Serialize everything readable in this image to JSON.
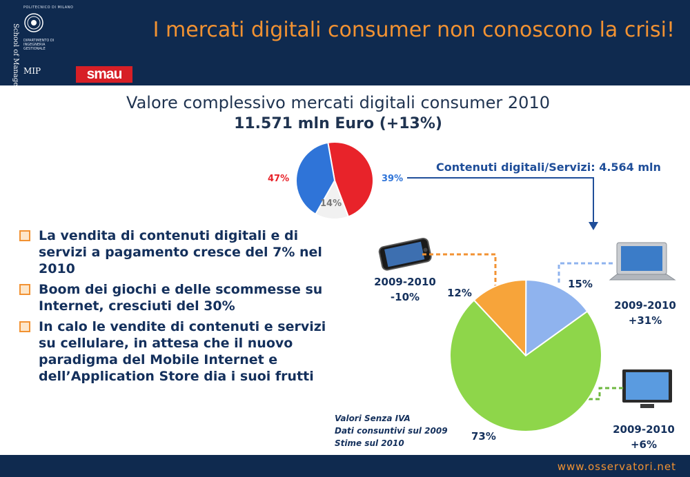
{
  "header": {
    "university": "POLITECNICO DI MILANO",
    "school": "School of Management",
    "department": "DIPARTIMENTO DI INGEGNERIA GESTIONALE",
    "mip_logo": "MIP",
    "smau_logo": "smau",
    "headline": "I mercati digitali consumer non conoscono la crisi!"
  },
  "main": {
    "subtitle": "Valore complessivo mercati digitali consumer 2010",
    "total": "11.571 mln Euro (+13%)",
    "contenuti_label": "Contenuti digitali/Servizi: 4.564 mln",
    "bullets": [
      "La vendita di contenuti digitali e di servizi a pagamento cresce del 7% nel 2010",
      "Boom dei giochi e delle scommesse su Internet, cresciuti del 30%",
      "In calo le vendite di contenuti e servizi su cellulare, in attesa che il nuovo paradigma del Mobile Internet e dell’Application Store dia i suoi frutti"
    ],
    "mobile_growth": [
      "2009-2010",
      "-10%"
    ],
    "laptop_growth": [
      "2009-2010",
      "+31%"
    ],
    "tv_growth": [
      "2009-2010",
      "+6%"
    ],
    "notes": [
      "Valori Senza IVA",
      "Dati consuntivi sul 2009",
      "Stime sul 2010"
    ]
  },
  "footer": {
    "url": "www.osservatori.net"
  },
  "chart_data": [
    {
      "type": "pie",
      "labels": [
        "47%",
        "14%",
        "39%"
      ],
      "values": [
        47,
        14,
        39
      ],
      "colors": [
        "#e8232a",
        "#f1f1f1",
        "#2f74d8"
      ]
    },
    {
      "type": "pie",
      "labels": [
        "12%",
        "15%",
        "73%"
      ],
      "values": [
        12,
        15,
        73
      ],
      "colors": [
        "#f7a43a",
        "#8fb3ee",
        "#8ed64a"
      ]
    }
  ]
}
